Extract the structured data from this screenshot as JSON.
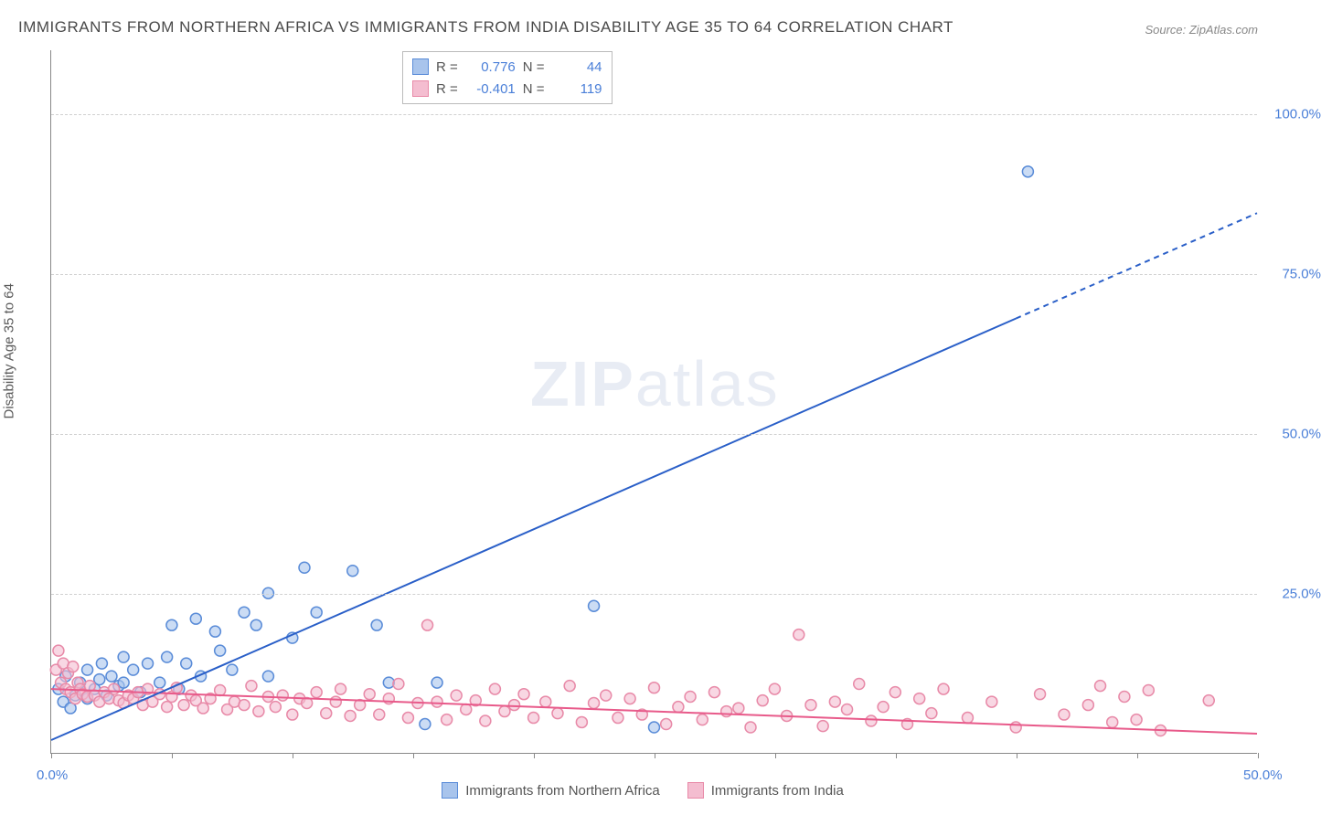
{
  "title": "IMMIGRANTS FROM NORTHERN AFRICA VS IMMIGRANTS FROM INDIA DISABILITY AGE 35 TO 64 CORRELATION CHART",
  "source": "Source: ZipAtlas.com",
  "y_axis_label": "Disability Age 35 to 64",
  "watermark_zip": "ZIP",
  "watermark_atlas": "atlas",
  "chart": {
    "type": "scatter-with-regression",
    "xlim": [
      0,
      50
    ],
    "ylim": [
      0,
      110
    ],
    "x_ticks": [
      0,
      5,
      10,
      15,
      20,
      25,
      30,
      35,
      40,
      45,
      50
    ],
    "x_tick_labels": {
      "0": "0.0%",
      "50": "50.0%"
    },
    "y_ticks": [
      25,
      50,
      75,
      100
    ],
    "y_tick_labels": [
      "25.0%",
      "50.0%",
      "75.0%",
      "100.0%"
    ],
    "grid_color": "#d0d0d0",
    "background_color": "#ffffff",
    "label_color": "#4a7fd8",
    "marker_radius": 6,
    "marker_stroke_width": 1.5,
    "line_width": 2,
    "series": [
      {
        "name": "Immigrants from Northern Africa",
        "fill_color": "#a8c4ec",
        "stroke_color": "#5a8cd8",
        "line_color": "#2a5fc8",
        "r_value": "0.776",
        "n_value": "44",
        "regression": {
          "x1": 0,
          "y1": 2,
          "x2": 40,
          "y2": 68,
          "dash_from_x": 40,
          "dash_to_x": 50,
          "dash_to_y": 84.5
        },
        "points": [
          [
            0.3,
            10
          ],
          [
            0.5,
            8
          ],
          [
            0.6,
            12
          ],
          [
            0.8,
            7
          ],
          [
            1,
            9
          ],
          [
            1.2,
            11
          ],
          [
            1.5,
            8.5
          ],
          [
            1.5,
            13
          ],
          [
            1.8,
            10
          ],
          [
            2,
            11.5
          ],
          [
            2.1,
            14
          ],
          [
            2.3,
            9
          ],
          [
            2.5,
            12
          ],
          [
            2.8,
            10.5
          ],
          [
            3,
            15
          ],
          [
            3,
            11
          ],
          [
            3.4,
            13
          ],
          [
            3.7,
            9.5
          ],
          [
            4,
            14
          ],
          [
            4.5,
            11
          ],
          [
            4.8,
            15
          ],
          [
            5,
            20
          ],
          [
            5.3,
            10
          ],
          [
            5.6,
            14
          ],
          [
            6,
            21
          ],
          [
            6.2,
            12
          ],
          [
            6.8,
            19
          ],
          [
            7,
            16
          ],
          [
            7.5,
            13
          ],
          [
            8,
            22
          ],
          [
            8.5,
            20
          ],
          [
            9,
            12
          ],
          [
            9,
            25
          ],
          [
            10,
            18
          ],
          [
            10.5,
            29
          ],
          [
            11,
            22
          ],
          [
            12.5,
            28.5
          ],
          [
            13.5,
            20
          ],
          [
            14,
            11
          ],
          [
            15.5,
            4.5
          ],
          [
            16,
            11
          ],
          [
            22.5,
            23
          ],
          [
            25,
            4
          ],
          [
            40.5,
            91
          ]
        ]
      },
      {
        "name": "Immigrants from India",
        "fill_color": "#f4bdd0",
        "stroke_color": "#e88aa8",
        "line_color": "#e85a8a",
        "r_value": "-0.401",
        "n_value": "119",
        "regression": {
          "x1": 0,
          "y1": 10,
          "x2": 50,
          "y2": 3
        },
        "points": [
          [
            0.2,
            13
          ],
          [
            0.3,
            16
          ],
          [
            0.4,
            11
          ],
          [
            0.5,
            14
          ],
          [
            0.6,
            10
          ],
          [
            0.7,
            12.5
          ],
          [
            0.8,
            9.5
          ],
          [
            0.9,
            13.5
          ],
          [
            1,
            8.5
          ],
          [
            1.1,
            11
          ],
          [
            1.2,
            10
          ],
          [
            1.3,
            9.2
          ],
          [
            1.5,
            8.8
          ],
          [
            1.6,
            10.5
          ],
          [
            1.8,
            9
          ],
          [
            2,
            8
          ],
          [
            2.2,
            9.5
          ],
          [
            2.4,
            8.5
          ],
          [
            2.6,
            10
          ],
          [
            2.8,
            8.2
          ],
          [
            3,
            7.8
          ],
          [
            3.2,
            9
          ],
          [
            3.4,
            8.5
          ],
          [
            3.6,
            9.5
          ],
          [
            3.8,
            7.5
          ],
          [
            4,
            10
          ],
          [
            4.2,
            8
          ],
          [
            4.5,
            9.2
          ],
          [
            4.8,
            7.2
          ],
          [
            5,
            8.8
          ],
          [
            5.2,
            10.2
          ],
          [
            5.5,
            7.5
          ],
          [
            5.8,
            9
          ],
          [
            6,
            8.2
          ],
          [
            6.3,
            7
          ],
          [
            6.6,
            8.5
          ],
          [
            7,
            9.8
          ],
          [
            7.3,
            6.8
          ],
          [
            7.6,
            8
          ],
          [
            8,
            7.5
          ],
          [
            8.3,
            10.5
          ],
          [
            8.6,
            6.5
          ],
          [
            9,
            8.8
          ],
          [
            9.3,
            7.2
          ],
          [
            9.6,
            9
          ],
          [
            10,
            6
          ],
          [
            10.3,
            8.5
          ],
          [
            10.6,
            7.8
          ],
          [
            11,
            9.5
          ],
          [
            11.4,
            6.2
          ],
          [
            11.8,
            8
          ],
          [
            12,
            10
          ],
          [
            12.4,
            5.8
          ],
          [
            12.8,
            7.5
          ],
          [
            13.2,
            9.2
          ],
          [
            13.6,
            6
          ],
          [
            14,
            8.5
          ],
          [
            14.4,
            10.8
          ],
          [
            14.8,
            5.5
          ],
          [
            15.2,
            7.8
          ],
          [
            15.6,
            20
          ],
          [
            16,
            8
          ],
          [
            16.4,
            5.2
          ],
          [
            16.8,
            9
          ],
          [
            17.2,
            6.8
          ],
          [
            17.6,
            8.2
          ],
          [
            18,
            5
          ],
          [
            18.4,
            10
          ],
          [
            18.8,
            6.5
          ],
          [
            19.2,
            7.5
          ],
          [
            19.6,
            9.2
          ],
          [
            20,
            5.5
          ],
          [
            20.5,
            8
          ],
          [
            21,
            6.2
          ],
          [
            21.5,
            10.5
          ],
          [
            22,
            4.8
          ],
          [
            22.5,
            7.8
          ],
          [
            23,
            9
          ],
          [
            23.5,
            5.5
          ],
          [
            24,
            8.5
          ],
          [
            24.5,
            6
          ],
          [
            25,
            10.2
          ],
          [
            25.5,
            4.5
          ],
          [
            26,
            7.2
          ],
          [
            26.5,
            8.8
          ],
          [
            27,
            5.2
          ],
          [
            27.5,
            9.5
          ],
          [
            28,
            6.5
          ],
          [
            28.5,
            7
          ],
          [
            29,
            4
          ],
          [
            29.5,
            8.2
          ],
          [
            30,
            10
          ],
          [
            30.5,
            5.8
          ],
          [
            31,
            18.5
          ],
          [
            31.5,
            7.5
          ],
          [
            32,
            4.2
          ],
          [
            32.5,
            8
          ],
          [
            33,
            6.8
          ],
          [
            33.5,
            10.8
          ],
          [
            34,
            5
          ],
          [
            34.5,
            7.2
          ],
          [
            35,
            9.5
          ],
          [
            35.5,
            4.5
          ],
          [
            36,
            8.5
          ],
          [
            36.5,
            6.2
          ],
          [
            37,
            10
          ],
          [
            38,
            5.5
          ],
          [
            39,
            8
          ],
          [
            40,
            4
          ],
          [
            41,
            9.2
          ],
          [
            42,
            6
          ],
          [
            43,
            7.5
          ],
          [
            43.5,
            10.5
          ],
          [
            44,
            4.8
          ],
          [
            44.5,
            8.8
          ],
          [
            45,
            5.2
          ],
          [
            45.5,
            9.8
          ],
          [
            46,
            3.5
          ],
          [
            48,
            8.2
          ]
        ]
      }
    ]
  },
  "stat_legend": {
    "r_label": "R =",
    "n_label": "N ="
  },
  "bottom_legend": {
    "items": [
      "Immigrants from Northern Africa",
      "Immigrants from India"
    ]
  }
}
